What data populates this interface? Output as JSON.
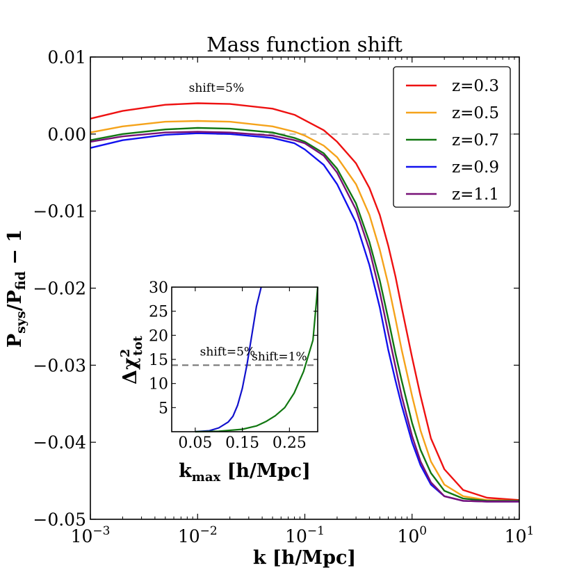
{
  "chart_data": [
    {
      "type": "line",
      "title": "Mass function shift",
      "xlabel": "k [h/Mpc]",
      "ylabel": "P_sys/P_fid − 1",
      "ylabel_parts": {
        "p1": "P",
        "s1": "sys",
        "mid": "/P",
        "s2": "fid",
        "tail": " − 1"
      },
      "xscale": "log",
      "xlim": [
        0.001,
        10
      ],
      "ylim": [
        -0.05,
        0.01
      ],
      "x_ticks": [
        {
          "base": "10",
          "exp": "−3",
          "value": 0.001
        },
        {
          "base": "10",
          "exp": "−2",
          "value": 0.01
        },
        {
          "base": "10",
          "exp": "−1",
          "value": 0.1
        },
        {
          "base": "10",
          "exp": "0",
          "value": 1
        },
        {
          "base": "10",
          "exp": "1",
          "value": 10
        }
      ],
      "y_ticks": [
        {
          "label": "0.01",
          "value": 0.01
        },
        {
          "label": "0.00",
          "value": 0.0
        },
        {
          "label": "−0.01",
          "value": -0.01
        },
        {
          "label": "−0.02",
          "value": -0.02
        },
        {
          "label": "−0.03",
          "value": -0.03
        },
        {
          "label": "−0.04",
          "value": -0.04
        },
        {
          "label": "−0.05",
          "value": -0.05
        }
      ],
      "reference_line": {
        "y": 0.0,
        "x_from": 0.015,
        "x_to": 10,
        "style": "dashed",
        "color": "#bbbbbb"
      },
      "annotation": {
        "text": "shift=5%",
        "x": 0.015,
        "y": 0.0055
      },
      "legend_position": "top-right",
      "series": [
        {
          "name": "z=0.3",
          "color": "#ee1111",
          "x": [
            0.001,
            0.002,
            0.005,
            0.01,
            0.02,
            0.05,
            0.08,
            0.1,
            0.15,
            0.2,
            0.3,
            0.4,
            0.5,
            0.6,
            0.7,
            0.8,
            1.0,
            1.2,
            1.5,
            2,
            3,
            5,
            10
          ],
          "y": [
            0.002,
            0.003,
            0.0038,
            0.004,
            0.0039,
            0.0033,
            0.0025,
            0.0018,
            0.0005,
            -0.001,
            -0.0038,
            -0.007,
            -0.0105,
            -0.0145,
            -0.0185,
            -0.0225,
            -0.029,
            -0.034,
            -0.0395,
            -0.0435,
            -0.0462,
            -0.0472,
            -0.0475
          ]
        },
        {
          "name": "z=0.5",
          "color": "#f5a31a",
          "x": [
            0.001,
            0.002,
            0.005,
            0.01,
            0.02,
            0.05,
            0.08,
            0.1,
            0.15,
            0.2,
            0.3,
            0.4,
            0.5,
            0.6,
            0.7,
            0.8,
            1.0,
            1.2,
            1.5,
            2,
            3,
            5,
            10
          ],
          "y": [
            0.0002,
            0.001,
            0.0016,
            0.0017,
            0.0016,
            0.001,
            0.0003,
            -0.0002,
            -0.0015,
            -0.003,
            -0.0065,
            -0.0105,
            -0.015,
            -0.0195,
            -0.024,
            -0.028,
            -0.034,
            -0.0385,
            -0.0425,
            -0.0455,
            -0.047,
            -0.0475,
            -0.0476
          ]
        },
        {
          "name": "z=0.7",
          "color": "#117711",
          "x": [
            0.001,
            0.002,
            0.005,
            0.01,
            0.02,
            0.05,
            0.08,
            0.1,
            0.15,
            0.2,
            0.3,
            0.4,
            0.5,
            0.6,
            0.7,
            0.8,
            1.0,
            1.2,
            1.5,
            2,
            3,
            5,
            10
          ],
          "y": [
            -0.0008,
            0.0,
            0.0006,
            0.0008,
            0.0007,
            0.0002,
            -0.0005,
            -0.001,
            -0.0025,
            -0.0045,
            -0.009,
            -0.014,
            -0.019,
            -0.024,
            -0.0285,
            -0.032,
            -0.0375,
            -0.041,
            -0.044,
            -0.0463,
            -0.0473,
            -0.0476,
            -0.0476
          ]
        },
        {
          "name": "z=0.9",
          "color": "#1111ee",
          "x": [
            0.001,
            0.002,
            0.005,
            0.01,
            0.02,
            0.05,
            0.08,
            0.1,
            0.15,
            0.2,
            0.3,
            0.4,
            0.5,
            0.6,
            0.7,
            0.8,
            1.0,
            1.2,
            1.5,
            2,
            3,
            5,
            10
          ],
          "y": [
            -0.0018,
            -0.0008,
            -0.0001,
            0.0001,
            0.0,
            -0.0005,
            -0.0012,
            -0.002,
            -0.004,
            -0.0065,
            -0.0115,
            -0.017,
            -0.0225,
            -0.028,
            -0.032,
            -0.0352,
            -0.04,
            -0.043,
            -0.0455,
            -0.047,
            -0.0476,
            -0.0477,
            -0.0477
          ]
        },
        {
          "name": "z=1.1",
          "color": "#771177",
          "x": [
            0.001,
            0.002,
            0.005,
            0.01,
            0.02,
            0.05,
            0.08,
            0.1,
            0.15,
            0.2,
            0.3,
            0.4,
            0.5,
            0.6,
            0.7,
            0.8,
            1.0,
            1.2,
            1.5,
            2,
            3,
            5,
            10
          ],
          "y": [
            -0.001,
            -0.0003,
            0.0002,
            0.0003,
            0.0002,
            -0.0002,
            -0.0008,
            -0.0012,
            -0.0028,
            -0.005,
            -0.0098,
            -0.015,
            -0.0205,
            -0.0258,
            -0.0302,
            -0.034,
            -0.0392,
            -0.0425,
            -0.0452,
            -0.047,
            -0.0476,
            -0.0477,
            -0.0477
          ]
        }
      ]
    },
    {
      "type": "line",
      "inset": true,
      "xlabel_parts": {
        "base": "k",
        "sub": "max",
        "tail": " [h/Mpc]"
      },
      "ylabel_parts": {
        "base": "Δχ",
        "sup": "2",
        "sub": "tot"
      },
      "xlim": [
        0.0,
        0.31
      ],
      "ylim": [
        0,
        30
      ],
      "x_ticks": [
        {
          "label": "0.05",
          "value": 0.05
        },
        {
          "label": "0.15",
          "value": 0.15
        },
        {
          "label": "0.25",
          "value": 0.25
        }
      ],
      "y_ticks": [
        {
          "label": "5",
          "value": 5
        },
        {
          "label": "10",
          "value": 10
        },
        {
          "label": "15",
          "value": 15
        },
        {
          "label": "20",
          "value": 20
        },
        {
          "label": "25",
          "value": 25
        },
        {
          "label": "30",
          "value": 30
        }
      ],
      "reference_line": {
        "y": 13.8,
        "style": "dashed",
        "color": "#777777"
      },
      "annotations": [
        {
          "text": "shift=5%",
          "x": 0.06,
          "y": 15.8
        },
        {
          "text": "shift=1%",
          "x": 0.17,
          "y": 14.8
        }
      ],
      "series": [
        {
          "name": "shift=5%",
          "color": "#1111cc",
          "x": [
            0.05,
            0.08,
            0.1,
            0.12,
            0.13,
            0.14,
            0.15,
            0.16,
            0.17,
            0.18,
            0.19
          ],
          "y": [
            0.0,
            0.2,
            0.8,
            2.0,
            3.2,
            5.5,
            9.0,
            14.0,
            20.0,
            26.0,
            30.0
          ]
        },
        {
          "name": "shift=1%",
          "color": "#117711",
          "x": [
            0.05,
            0.1,
            0.15,
            0.18,
            0.2,
            0.22,
            0.24,
            0.26,
            0.28,
            0.3,
            0.31
          ],
          "y": [
            0.0,
            0.1,
            0.5,
            1.2,
            2.1,
            3.3,
            5.0,
            8.0,
            12.5,
            19.0,
            30.0
          ]
        }
      ]
    }
  ]
}
